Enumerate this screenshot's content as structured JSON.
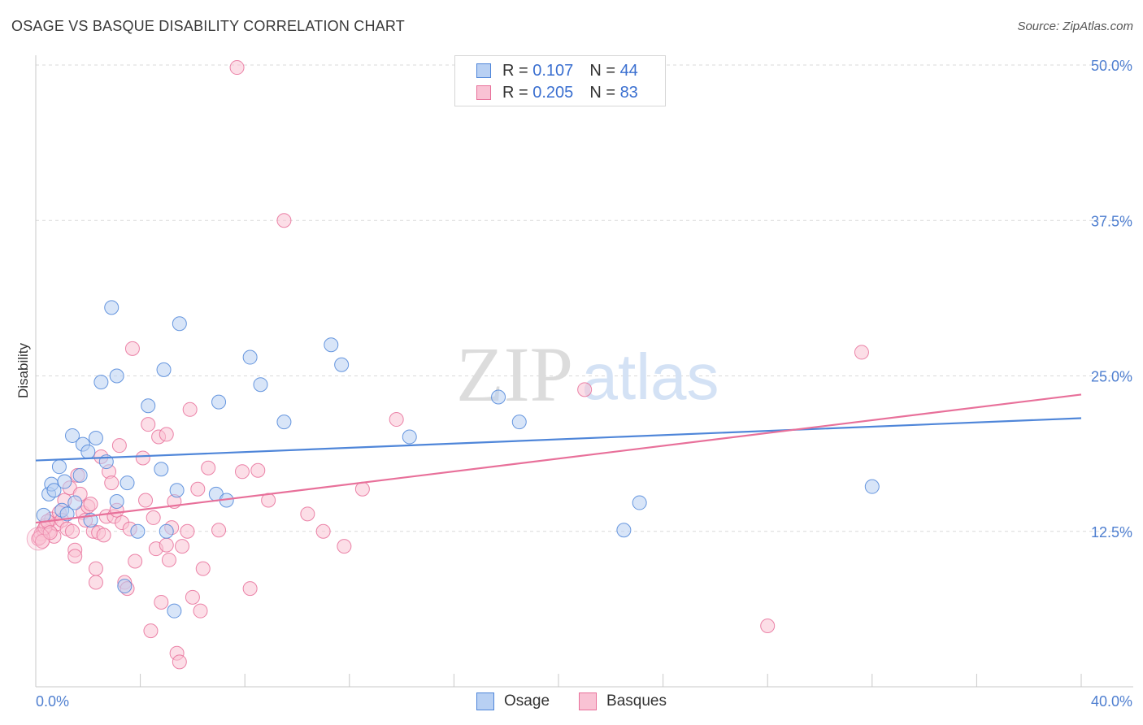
{
  "title": "OSAGE VS BASQUE DISABILITY CORRELATION CHART",
  "source": "Source: ZipAtlas.com",
  "watermark": {
    "zip": "ZIP",
    "atlas": "atlas"
  },
  "colors": {
    "osage": "#4f86d9",
    "osage_fill": "#b8d0f3",
    "basques": "#e8709a",
    "basques_fill": "#f9c2d4",
    "grid": "#d9d9d9",
    "tick_text": "#4f7fd0"
  },
  "legend": {
    "rows": [
      {
        "r_label": "R =",
        "r_value": "0.107",
        "n_label": "N =",
        "n_value": "44"
      },
      {
        "r_label": "R =",
        "r_value": "0.205",
        "n_label": "N =",
        "n_value": "83"
      }
    ],
    "series_names": [
      "Osage",
      "Basques"
    ]
  },
  "chart_data": {
    "type": "scatter",
    "title": "OSAGE VS BASQUE DISABILITY CORRELATION CHART",
    "xlabel": "",
    "ylabel": "Disability",
    "xlim": [
      0,
      40
    ],
    "ylim": [
      0,
      50
    ],
    "x_tick_labels": [
      "0.0%",
      "40.0%"
    ],
    "y_ticks": [
      12.5,
      25.0,
      37.5,
      50.0
    ],
    "y_tick_labels": [
      "12.5%",
      "25.0%",
      "37.5%",
      "50.0%"
    ],
    "grid": true,
    "legend_position": "top-center",
    "series": [
      {
        "name": "Osage",
        "r": 0.107,
        "n": 44,
        "trend": {
          "x": [
            0,
            40
          ],
          "y": [
            18.2,
            21.6
          ]
        },
        "points": [
          [
            0.3,
            13.8
          ],
          [
            0.5,
            15.5
          ],
          [
            0.6,
            16.3
          ],
          [
            0.7,
            15.8
          ],
          [
            0.9,
            17.7
          ],
          [
            1.0,
            14.2
          ],
          [
            1.1,
            16.5
          ],
          [
            1.2,
            13.9
          ],
          [
            1.4,
            20.2
          ],
          [
            1.5,
            14.8
          ],
          [
            1.7,
            17.0
          ],
          [
            1.8,
            19.5
          ],
          [
            2.0,
            18.9
          ],
          [
            2.1,
            13.4
          ],
          [
            2.3,
            20.0
          ],
          [
            2.5,
            24.5
          ],
          [
            2.7,
            18.1
          ],
          [
            2.9,
            30.5
          ],
          [
            3.1,
            25.0
          ],
          [
            3.1,
            14.9
          ],
          [
            3.4,
            8.1
          ],
          [
            3.5,
            16.4
          ],
          [
            3.9,
            12.5
          ],
          [
            4.3,
            22.6
          ],
          [
            4.8,
            17.5
          ],
          [
            4.9,
            25.5
          ],
          [
            5.4,
            15.8
          ],
          [
            5.5,
            29.2
          ],
          [
            5.0,
            12.5
          ],
          [
            5.3,
            6.1
          ],
          [
            6.9,
            15.5
          ],
          [
            7.0,
            22.9
          ],
          [
            7.3,
            15.0
          ],
          [
            8.2,
            26.5
          ],
          [
            8.6,
            24.3
          ],
          [
            9.5,
            21.3
          ],
          [
            11.3,
            27.5
          ],
          [
            11.7,
            25.9
          ],
          [
            14.3,
            20.1
          ],
          [
            17.7,
            23.3
          ],
          [
            18.5,
            21.3
          ],
          [
            22.5,
            12.6
          ],
          [
            23.1,
            14.8
          ],
          [
            32.0,
            16.1
          ]
        ]
      },
      {
        "name": "Basques",
        "r": 0.205,
        "n": 83,
        "trend": {
          "x": [
            0,
            40
          ],
          "y": [
            13.2,
            23.5
          ]
        },
        "points": [
          [
            0.1,
            11.9
          ],
          [
            0.2,
            12.3
          ],
          [
            0.3,
            12.6
          ],
          [
            0.4,
            13.0
          ],
          [
            0.5,
            12.5
          ],
          [
            0.6,
            13.5
          ],
          [
            0.7,
            12.1
          ],
          [
            0.8,
            13.1
          ],
          [
            0.9,
            14.0
          ],
          [
            1.0,
            13.4
          ],
          [
            1.1,
            15.0
          ],
          [
            1.2,
            12.7
          ],
          [
            1.3,
            16.0
          ],
          [
            1.4,
            12.5
          ],
          [
            1.5,
            11.0
          ],
          [
            1.5,
            10.5
          ],
          [
            1.6,
            17.0
          ],
          [
            1.7,
            15.5
          ],
          [
            1.8,
            14.0
          ],
          [
            1.9,
            13.4
          ],
          [
            2.0,
            14.5
          ],
          [
            2.1,
            14.7
          ],
          [
            2.2,
            12.5
          ],
          [
            2.3,
            9.5
          ],
          [
            2.3,
            8.4
          ],
          [
            2.4,
            12.4
          ],
          [
            2.5,
            18.5
          ],
          [
            2.6,
            12.2
          ],
          [
            2.7,
            13.7
          ],
          [
            2.8,
            17.3
          ],
          [
            2.9,
            16.4
          ],
          [
            3.0,
            13.7
          ],
          [
            3.1,
            14.2
          ],
          [
            3.2,
            19.4
          ],
          [
            3.3,
            13.2
          ],
          [
            3.4,
            8.4
          ],
          [
            3.5,
            7.9
          ],
          [
            3.6,
            12.7
          ],
          [
            3.7,
            27.2
          ],
          [
            3.8,
            10.1
          ],
          [
            4.1,
            18.4
          ],
          [
            4.2,
            15.0
          ],
          [
            4.3,
            21.1
          ],
          [
            4.4,
            4.5
          ],
          [
            4.5,
            13.6
          ],
          [
            4.6,
            11.1
          ],
          [
            4.7,
            20.1
          ],
          [
            4.8,
            6.8
          ],
          [
            5.0,
            20.3
          ],
          [
            5.0,
            11.4
          ],
          [
            5.1,
            10.2
          ],
          [
            5.2,
            12.8
          ],
          [
            5.3,
            14.9
          ],
          [
            5.4,
            2.7
          ],
          [
            5.5,
            2.0
          ],
          [
            5.6,
            11.3
          ],
          [
            5.8,
            12.5
          ],
          [
            5.9,
            22.3
          ],
          [
            6.0,
            7.2
          ],
          [
            6.2,
            15.9
          ],
          [
            6.3,
            6.1
          ],
          [
            6.4,
            9.5
          ],
          [
            6.6,
            17.6
          ],
          [
            7.0,
            12.6
          ],
          [
            7.7,
            49.8
          ],
          [
            7.9,
            17.3
          ],
          [
            8.2,
            7.9
          ],
          [
            8.5,
            17.4
          ],
          [
            8.9,
            15.0
          ],
          [
            9.5,
            37.5
          ],
          [
            10.4,
            13.9
          ],
          [
            11.0,
            12.5
          ],
          [
            11.8,
            11.3
          ],
          [
            12.5,
            15.9
          ],
          [
            13.8,
            21.5
          ],
          [
            21.0,
            23.9
          ],
          [
            28.0,
            4.9
          ],
          [
            31.6,
            26.9
          ],
          [
            0.15,
            12.0
          ],
          [
            0.25,
            11.7
          ],
          [
            0.35,
            12.8
          ],
          [
            0.45,
            13.3
          ],
          [
            0.55,
            12.4
          ]
        ]
      }
    ]
  }
}
